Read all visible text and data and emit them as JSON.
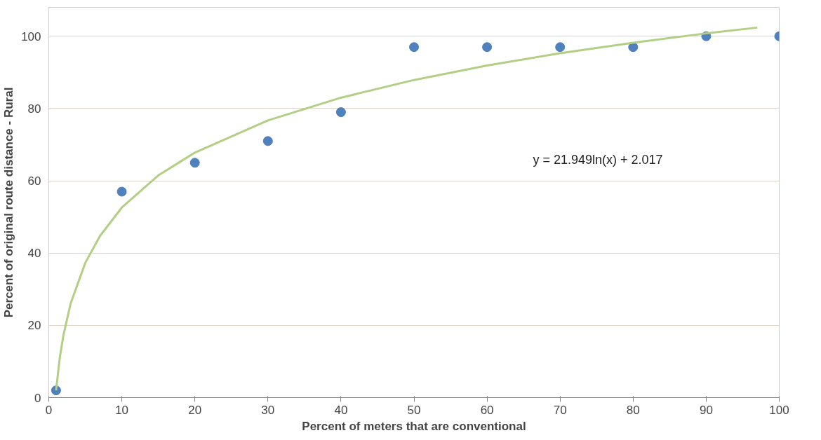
{
  "chart_data": {
    "type": "scatter",
    "xlabel": "Percent of meters that are conventional",
    "ylabel": "Percent of original route distance - Rural",
    "xlim": [
      0,
      100
    ],
    "xticks": [
      0,
      10,
      20,
      30,
      40,
      50,
      60,
      70,
      80,
      90,
      100
    ],
    "ylim": [
      0,
      108
    ],
    "yticks": [
      0,
      20,
      40,
      60,
      80,
      100
    ],
    "grid": "y",
    "series": [
      {
        "color": "#4f81bd",
        "marker": "circle",
        "x": [
          1,
          10,
          20,
          30,
          40,
          50,
          60,
          70,
          80,
          90,
          100
        ],
        "values": [
          2,
          57,
          65,
          71,
          79,
          97,
          97,
          97,
          97,
          100,
          100
        ]
      },
      {
        "type": "line",
        "color": "#b3cf85",
        "marker": "none",
        "line_style": "solid",
        "x": [
          1,
          1.5,
          2,
          3,
          5,
          7,
          10,
          15,
          20,
          30,
          40,
          50,
          60,
          70,
          80,
          90,
          97
        ],
        "values": [
          2.0,
          10.9,
          17.2,
          26.1,
          37.3,
          44.7,
          52.6,
          61.5,
          67.8,
          76.7,
          83.0,
          87.9,
          91.9,
          95.3,
          98.2,
          100.8,
          102.4
        ]
      }
    ],
    "annotations": [
      "y = 21.949ln(x) + 2.017"
    ]
  }
}
